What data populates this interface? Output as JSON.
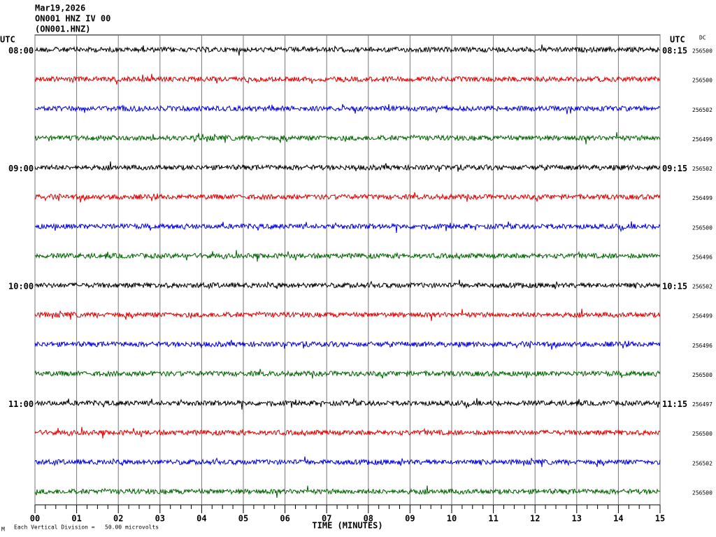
{
  "header": {
    "lines": [
      "Mar19,2026",
      "ON001 HNZ IV 00",
      "(ON001.HNZ)"
    ]
  },
  "axis": {
    "left_unit": "UTC",
    "right_unit": "UTC",
    "dc_label": "DC",
    "xlim": [
      0,
      15
    ],
    "xticks": [
      {
        "value": 0,
        "label": "00"
      },
      {
        "value": 1,
        "label": "01"
      },
      {
        "value": 2,
        "label": "02"
      },
      {
        "value": 3,
        "label": "03"
      },
      {
        "value": 4,
        "label": "04"
      },
      {
        "value": 5,
        "label": "05"
      },
      {
        "value": 6,
        "label": "06"
      },
      {
        "value": 7,
        "label": "07"
      },
      {
        "value": 8,
        "label": "08"
      },
      {
        "value": 9,
        "label": "09"
      },
      {
        "value": 10,
        "label": "10"
      },
      {
        "value": 11,
        "label": "11"
      },
      {
        "value": 12,
        "label": "12"
      },
      {
        "value": 13,
        "label": "13"
      },
      {
        "value": 14,
        "label": "14"
      },
      {
        "value": 15,
        "label": "15"
      }
    ],
    "xlabel": "TIME (MINUTES)"
  },
  "rows": [
    {
      "left": "08:00",
      "right": "08:15",
      "dc": 256500,
      "color": "#000000"
    },
    {
      "left": null,
      "right": null,
      "dc": 256500,
      "color": "#e00000"
    },
    {
      "left": null,
      "right": null,
      "dc": 256502,
      "color": "#0000e0"
    },
    {
      "left": null,
      "right": null,
      "dc": 256499,
      "color": "#006400"
    },
    {
      "left": "09:00",
      "right": "09:15",
      "dc": 256502,
      "color": "#000000"
    },
    {
      "left": null,
      "right": null,
      "dc": 256499,
      "color": "#e00000"
    },
    {
      "left": null,
      "right": null,
      "dc": 256500,
      "color": "#0000e0"
    },
    {
      "left": null,
      "right": null,
      "dc": 256496,
      "color": "#006400"
    },
    {
      "left": "10:00",
      "right": "10:15",
      "dc": 256502,
      "color": "#000000"
    },
    {
      "left": null,
      "right": null,
      "dc": 256499,
      "color": "#e00000"
    },
    {
      "left": null,
      "right": null,
      "dc": 256496,
      "color": "#0000e0"
    },
    {
      "left": null,
      "right": null,
      "dc": 256500,
      "color": "#006400"
    },
    {
      "left": "11:00",
      "right": "11:15",
      "dc": 256497,
      "color": "#000000"
    },
    {
      "left": null,
      "right": null,
      "dc": 256500,
      "color": "#e00000"
    },
    {
      "left": null,
      "right": null,
      "dc": 256502,
      "color": "#0000e0"
    },
    {
      "left": null,
      "right": null,
      "dc": 256500,
      "color": "#006400"
    }
  ],
  "footer": {
    "mark": "M",
    "text": "Each Vertical Division =   50.00 microvolts"
  }
}
